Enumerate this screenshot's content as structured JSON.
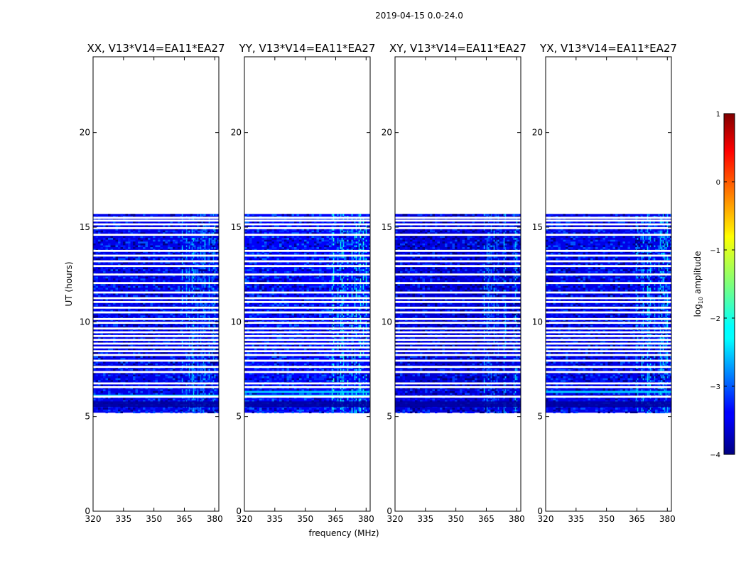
{
  "chart_data": {
    "type": "heatmap",
    "suptitle": "2019-04-15 0.0-24.0",
    "xlabel": "frequency (MHz)",
    "ylabel": "UT (hours)",
    "xlim": [
      320,
      382
    ],
    "ylim": [
      0,
      24
    ],
    "xticks": [
      320,
      335,
      350,
      365,
      380
    ],
    "yticks": [
      0,
      5,
      10,
      15,
      20
    ],
    "colormap": "jet",
    "colorbar": {
      "label": "log10 amplitude",
      "range": [
        -4,
        1
      ],
      "ticks": [
        1,
        0,
        -1,
        -2,
        -3,
        -4
      ]
    },
    "data_extent_hours": [
      5.2,
      15.7
    ],
    "data_extent_mhz": [
      320,
      382
    ],
    "rfi_band_mhz": [
      363,
      380
    ],
    "dark_band_hours": [
      5.5,
      5.8
    ],
    "gap_hours": [
      6.05,
      6.55,
      6.75,
      7.35,
      7.62,
      7.95,
      8.25,
      8.45,
      8.65,
      8.85,
      9.05,
      9.25,
      9.45,
      9.65,
      9.95,
      10.15,
      10.5,
      10.75,
      11.05,
      11.25,
      11.55,
      12.05,
      12.5,
      12.95,
      13.2,
      13.5,
      13.75,
      14.6,
      14.95,
      15.15,
      15.35,
      15.5
    ],
    "panels": [
      {
        "title": "XX, V13*V14=EA11*EA27",
        "background_log10": -3.5,
        "rfi_log10": -2.6,
        "row_hours": [
          6.1,
          10.5
        ]
      },
      {
        "title": "YY, V13*V14=EA11*EA27",
        "background_log10": -3.4,
        "rfi_log10": -2.2,
        "row_hours": [
          6.1,
          6.3,
          10.5,
          15.5
        ]
      },
      {
        "title": "XY, V13*V14=EA11*EA27",
        "background_log10": -3.6,
        "rfi_log10": -2.7,
        "row_hours": []
      },
      {
        "title": "YX, V13*V14=EA11*EA27",
        "background_log10": -3.5,
        "rfi_log10": -2.5,
        "row_hours": [
          6.3
        ]
      }
    ]
  }
}
